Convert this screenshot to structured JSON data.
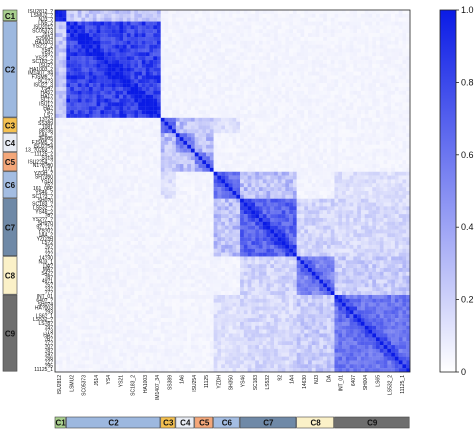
{
  "chart_data": {
    "type": "heatmap",
    "colorbar": {
      "ticks": [
        1.0,
        0.8,
        0.6,
        0.4,
        0.2,
        0
      ],
      "tick_labels": [
        "1.0",
        "0.8",
        "0.6",
        "0.4",
        "0.2",
        "0"
      ],
      "range": [
        0,
        1
      ],
      "low_color": "#ffffff",
      "high_color": "#0a1be6"
    },
    "groups": [
      {
        "name": "C1",
        "size": 3,
        "color": "#a9d08e"
      },
      {
        "name": "C2",
        "size": 25,
        "color": "#9db8df"
      },
      {
        "name": "C3",
        "size": 4,
        "color": "#f5c150"
      },
      {
        "name": "C4",
        "size": 5,
        "color": "#e8ecf4"
      },
      {
        "name": "C5",
        "size": 5,
        "color": "#f4a77a"
      },
      {
        "name": "C6",
        "size": 7,
        "color": "#a4bde2"
      },
      {
        "name": "C7",
        "size": 15,
        "color": "#6f89a7"
      },
      {
        "name": "C8",
        "size": 10,
        "color": "#fbf1c8"
      },
      {
        "name": "C9",
        "size": 20,
        "color": "#6e6e6e"
      }
    ],
    "group_strength": [
      0.95,
      0.85,
      0.55,
      0.45,
      0.45,
      0.6,
      0.7,
      0.55,
      0.62
    ],
    "off_block": [
      {
        "a": 0,
        "b": 1,
        "v": 0.25
      },
      {
        "a": 2,
        "b": 3,
        "v": 0.3
      },
      {
        "a": 3,
        "b": 4,
        "v": 0.32
      },
      {
        "a": 2,
        "b": 4,
        "v": 0.22
      },
      {
        "a": 5,
        "b": 6,
        "v": 0.3
      },
      {
        "a": 6,
        "b": 7,
        "v": 0.2
      },
      {
        "a": 7,
        "b": 8,
        "v": 0.24
      },
      {
        "a": 6,
        "b": 8,
        "v": 0.18
      },
      {
        "a": 5,
        "b": 8,
        "v": 0.14
      },
      {
        "a": 2,
        "b": 5,
        "v": 0.14
      }
    ],
    "row_labels": [
      "ISU2812_?",
      "LSMU2_?",
      "NJ3_?",
      "LN5_2",
      "ISU2012",
      "SC05373",
      "J514",
      "S29604",
      "HA1003",
      "YS2?7_2",
      "Y54?",
      "Y59?",
      "YS2?_?",
      "SC183_2",
      "ISU2?",
      "HA1003_2",
      "IM1407_34",
      "FJSM5_?",
      "SC1?3",
      "ISU2?_3",
      "YS4?",
      "HA5?",
      "HA1?",
      "SC1?",
      "ISU1?",
      "HA?",
      "YS?",
      "LS?",
      "13?24",
      "SS389",
      "1081",
      "88?36",
      "1A6_?",
      "3E605",
      "FJSM5_2",
      "ISU2?54",
      "13_?0283_?",
      "11125_2",
      "S314",
      "ISU2?54_?",
      "N1?8?60",
      "11?1",
      "YZDH_?",
      "SH?350",
      "YS10",
      "Y5?",
      "161_08P",
      "YS46_?",
      "SC1?3_?",
      "SH0?0",
      "SC183_?",
      "LS532_?",
      "YS46_2",
      "?8?",
      "YS2?7_?",
      "SH9?0",
      "92_?1?",
      "YS?0?",
      "1A4_2",
      "YZD?H",
      "L5?2",
      "?6?",
      "?1?",
      "?2?",
      "14?30",
      "NJ3_1",
      "DA?",
      "MA?",
      "S42?",
      "?8?",
      "49?1",
      "?5?",
      "?3?",
      "?7?",
      "INT_01",
      "640?_?",
      "SH0?4",
      "HA?003",
      "?93",
      "LS6?_1",
      "LS532_?",
      "LS?8?",
      "?9?",
      "?73",
      "HA?",
      "?B?",
      "?7?",
      "?0?",
      "?8?",
      "?4?",
      "?66",
      "?2?",
      "?95",
      "11125_1"
    ],
    "col_labels_bottom": [
      "ISU2812",
      "LSMU2",
      "SC05373",
      "J514",
      "YS4",
      "YS21",
      "SC183_2",
      "HA1003",
      "IM1407_34",
      "SS389",
      "1A6",
      "ISU254",
      "11125",
      "YZDH",
      "SH350",
      "YS46",
      "SC183",
      "LS532",
      "92",
      "1A4",
      "14630",
      "NJ3",
      "DA",
      "INT_01",
      "6407",
      "SH004",
      "LS65",
      "LS532_2",
      "11125_1"
    ]
  }
}
